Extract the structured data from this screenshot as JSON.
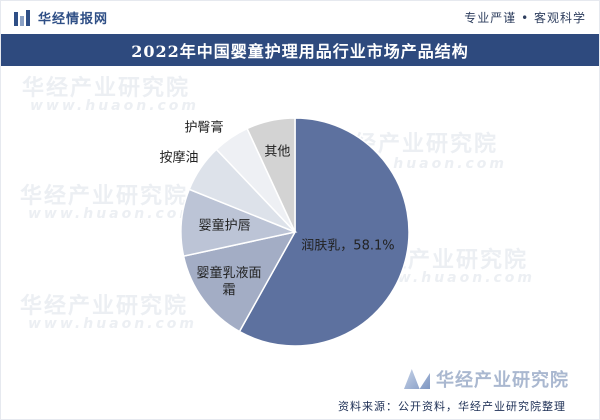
{
  "header": {
    "brand": "华经情报网",
    "slogan": "专业严谨 • 客观科学"
  },
  "title": "2022年中国婴童护理用品行业市场产品结构",
  "watermarks": {
    "cn": "华经产业研究院",
    "url": "www.huaon.com"
  },
  "footer": {
    "logo_text": "华经产业研究院",
    "source": "资料来源：公开资料，华经产业研究院整理"
  },
  "chart_data": {
    "type": "pie",
    "title": "2022年中国婴童护理用品行业市场产品结构",
    "start_angle_deg": 0,
    "direction": "clockwise",
    "slices": [
      {
        "name": "润肤乳",
        "value": 58.1,
        "color": "#5d719f",
        "label": "润肤乳，58.1%",
        "label_inside": true
      },
      {
        "name": "婴童乳液面霜",
        "value": 13.5,
        "color": "#a3adc5",
        "label": "婴童乳液面霜",
        "label_inside": true
      },
      {
        "name": "婴童护唇",
        "value": 9.5,
        "color": "#bcc4d6",
        "label": "婴童护唇",
        "label_inside": true
      },
      {
        "name": "按摩油",
        "value": 6.8,
        "color": "#dde2ea",
        "label": "按摩油",
        "label_inside": false
      },
      {
        "name": "护臀膏",
        "value": 5.2,
        "color": "#eef0f4",
        "label": "护臀膏",
        "label_inside": false
      },
      {
        "name": "其他",
        "value": 6.9,
        "color": "#d3d3d3",
        "label": "其他",
        "label_inside": true
      }
    ]
  }
}
